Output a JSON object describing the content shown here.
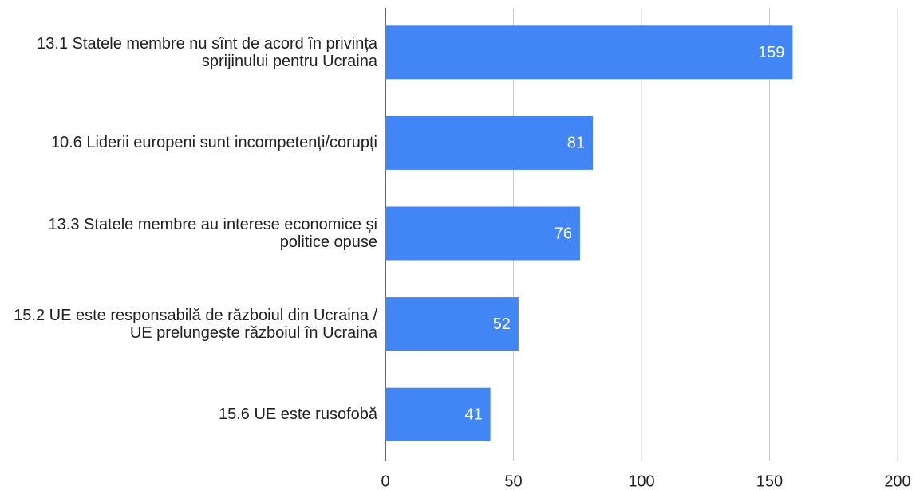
{
  "chart_data": {
    "type": "bar",
    "orientation": "horizontal",
    "categories": [
      "13.1 Statele membre nu sînt de acord în privința sprijinului pentru Ucraina",
      "10.6 Liderii europeni sunt incompetenți/corupți",
      "13.3 Statele membre au interese economice și politice opuse",
      "15.2 UE este responsabilă de războiul din Ucraina / UE prelungește războiul în Ucraina",
      "15.6 UE este rusofobă"
    ],
    "values": [
      159,
      81,
      76,
      52,
      41
    ],
    "color": "#4285f4",
    "xlim": [
      0,
      200
    ],
    "xticks": [
      0,
      50,
      100,
      150,
      200
    ],
    "grid": true
  }
}
